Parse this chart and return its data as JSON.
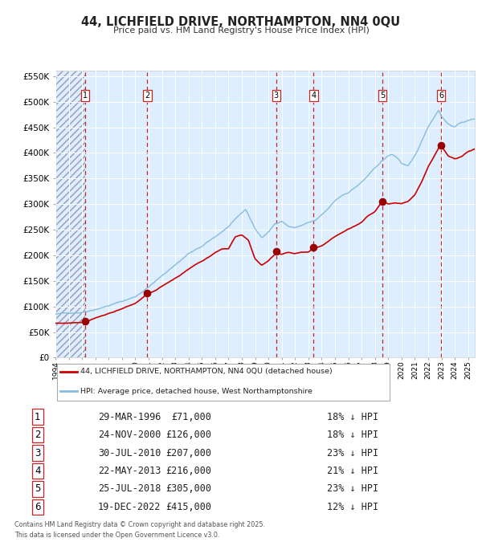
{
  "title": "44, LICHFIELD DRIVE, NORTHAMPTON, NN4 0QU",
  "subtitle": "Price paid vs. HM Land Registry's House Price Index (HPI)",
  "legend_line1": "44, LICHFIELD DRIVE, NORTHAMPTON, NN4 0QU (detached house)",
  "legend_line2": "HPI: Average price, detached house, West Northamptonshire",
  "footer1": "Contains HM Land Registry data © Crown copyright and database right 2025.",
  "footer2": "This data is licensed under the Open Government Licence v3.0.",
  "sales": [
    {
      "num": 1,
      "date": "1996-03-29",
      "price": 71000,
      "x_year": 1996.24
    },
    {
      "num": 2,
      "date": "2000-11-24",
      "price": 126000,
      "x_year": 2000.9
    },
    {
      "num": 3,
      "date": "2010-07-30",
      "price": 207000,
      "x_year": 2010.58
    },
    {
      "num": 4,
      "date": "2013-05-22",
      "price": 216000,
      "x_year": 2013.39
    },
    {
      "num": 5,
      "date": "2018-07-25",
      "price": 305000,
      "x_year": 2018.56
    },
    {
      "num": 6,
      "date": "2022-12-19",
      "price": 415000,
      "x_year": 2022.97
    }
  ],
  "sale_dates_display": [
    "29-MAR-1996",
    "24-NOV-2000",
    "30-JUL-2010",
    "22-MAY-2013",
    "25-JUL-2018",
    "19-DEC-2022"
  ],
  "sale_prices_display": [
    "£71,000",
    "£126,000",
    "£207,000",
    "£216,000",
    "£305,000",
    "£415,000"
  ],
  "sale_pcts_display": [
    "18% ↓ HPI",
    "18% ↓ HPI",
    "23% ↓ HPI",
    "21% ↓ HPI",
    "23% ↓ HPI",
    "12% ↓ HPI"
  ],
  "hpi_color": "#88bbdd",
  "price_color": "#cc0000",
  "sale_marker_color": "#990000",
  "dashed_line_color": "#cc2222",
  "plot_bg_color": "#ddeeff",
  "ylim": [
    0,
    560000
  ],
  "xlim_start": 1994.0,
  "xlim_end": 2025.5,
  "yticks": [
    0,
    50000,
    100000,
    150000,
    200000,
    250000,
    300000,
    350000,
    400000,
    450000,
    500000,
    550000
  ],
  "hpi_keypoints": [
    [
      1994.0,
      85000
    ],
    [
      1995.0,
      87000
    ],
    [
      1996.0,
      90000
    ],
    [
      1997.0,
      97000
    ],
    [
      1998.0,
      105000
    ],
    [
      1999.0,
      113000
    ],
    [
      2000.0,
      122000
    ],
    [
      2001.0,
      142000
    ],
    [
      2002.0,
      163000
    ],
    [
      2003.0,
      185000
    ],
    [
      2004.0,
      207000
    ],
    [
      2005.0,
      220000
    ],
    [
      2006.0,
      238000
    ],
    [
      2007.0,
      258000
    ],
    [
      2007.8,
      278000
    ],
    [
      2008.3,
      290000
    ],
    [
      2009.0,
      252000
    ],
    [
      2009.5,
      235000
    ],
    [
      2010.0,
      245000
    ],
    [
      2010.5,
      262000
    ],
    [
      2011.0,
      268000
    ],
    [
      2011.5,
      258000
    ],
    [
      2012.0,
      255000
    ],
    [
      2012.5,
      260000
    ],
    [
      2013.0,
      265000
    ],
    [
      2013.5,
      268000
    ],
    [
      2014.0,
      278000
    ],
    [
      2014.5,
      290000
    ],
    [
      2015.0,
      305000
    ],
    [
      2015.5,
      315000
    ],
    [
      2016.0,
      322000
    ],
    [
      2016.5,
      332000
    ],
    [
      2017.0,
      342000
    ],
    [
      2017.5,
      355000
    ],
    [
      2018.0,
      368000
    ],
    [
      2018.5,
      382000
    ],
    [
      2019.0,
      392000
    ],
    [
      2019.3,
      395000
    ],
    [
      2019.7,
      388000
    ],
    [
      2020.0,
      378000
    ],
    [
      2020.5,
      372000
    ],
    [
      2021.0,
      390000
    ],
    [
      2021.5,
      418000
    ],
    [
      2022.0,
      448000
    ],
    [
      2022.5,
      470000
    ],
    [
      2022.8,
      482000
    ],
    [
      2023.0,
      470000
    ],
    [
      2023.5,
      455000
    ],
    [
      2024.0,
      450000
    ],
    [
      2024.5,
      458000
    ],
    [
      2025.0,
      462000
    ],
    [
      2025.5,
      465000
    ]
  ],
  "price_keypoints": [
    [
      1994.0,
      67000
    ],
    [
      1995.0,
      68000
    ],
    [
      1996.24,
      71000
    ],
    [
      1997.0,
      80000
    ],
    [
      1998.0,
      88000
    ],
    [
      1999.0,
      98000
    ],
    [
      2000.0,
      108000
    ],
    [
      2000.9,
      126000
    ],
    [
      2001.5,
      132000
    ],
    [
      2002.5,
      148000
    ],
    [
      2003.5,
      165000
    ],
    [
      2004.5,
      183000
    ],
    [
      2005.5,
      198000
    ],
    [
      2006.0,
      207000
    ],
    [
      2006.5,
      214000
    ],
    [
      2007.0,
      215000
    ],
    [
      2007.5,
      238000
    ],
    [
      2008.0,
      242000
    ],
    [
      2008.5,
      232000
    ],
    [
      2009.0,
      195000
    ],
    [
      2009.5,
      183000
    ],
    [
      2010.0,
      193000
    ],
    [
      2010.58,
      207000
    ],
    [
      2011.0,
      204000
    ],
    [
      2011.5,
      208000
    ],
    [
      2012.0,
      205000
    ],
    [
      2012.5,
      208000
    ],
    [
      2013.0,
      208000
    ],
    [
      2013.39,
      216000
    ],
    [
      2013.5,
      216000
    ],
    [
      2014.0,
      220000
    ],
    [
      2014.5,
      228000
    ],
    [
      2015.0,
      238000
    ],
    [
      2015.5,
      245000
    ],
    [
      2016.0,
      252000
    ],
    [
      2016.5,
      258000
    ],
    [
      2017.0,
      265000
    ],
    [
      2017.5,
      278000
    ],
    [
      2018.0,
      285000
    ],
    [
      2018.56,
      305000
    ],
    [
      2019.0,
      298000
    ],
    [
      2019.5,
      300000
    ],
    [
      2020.0,
      298000
    ],
    [
      2020.5,
      302000
    ],
    [
      2021.0,
      315000
    ],
    [
      2021.5,
      340000
    ],
    [
      2022.0,
      370000
    ],
    [
      2022.97,
      415000
    ],
    [
      2023.0,
      410000
    ],
    [
      2023.5,
      390000
    ],
    [
      2024.0,
      385000
    ],
    [
      2024.5,
      390000
    ],
    [
      2025.0,
      400000
    ],
    [
      2025.5,
      405000
    ]
  ]
}
